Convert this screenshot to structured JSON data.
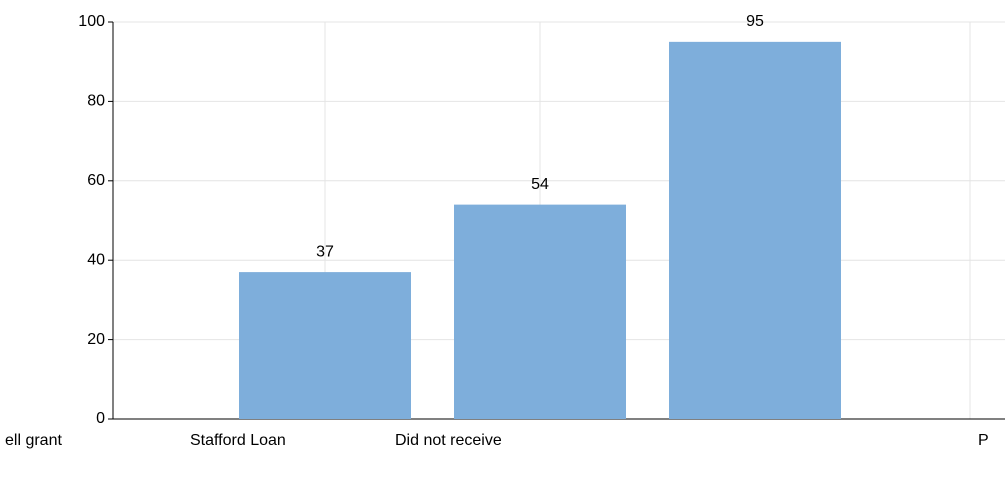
{
  "chart_data": {
    "type": "bar",
    "categories": [
      "ell grant",
      "Stafford Loan",
      "Did not receive",
      "P"
    ],
    "values": [
      null,
      37,
      54,
      95
    ],
    "color": "#7eaedb",
    "ylim": [
      0,
      100
    ],
    "yticks": [
      0,
      20,
      40,
      60,
      80,
      100
    ],
    "grid": true
  }
}
